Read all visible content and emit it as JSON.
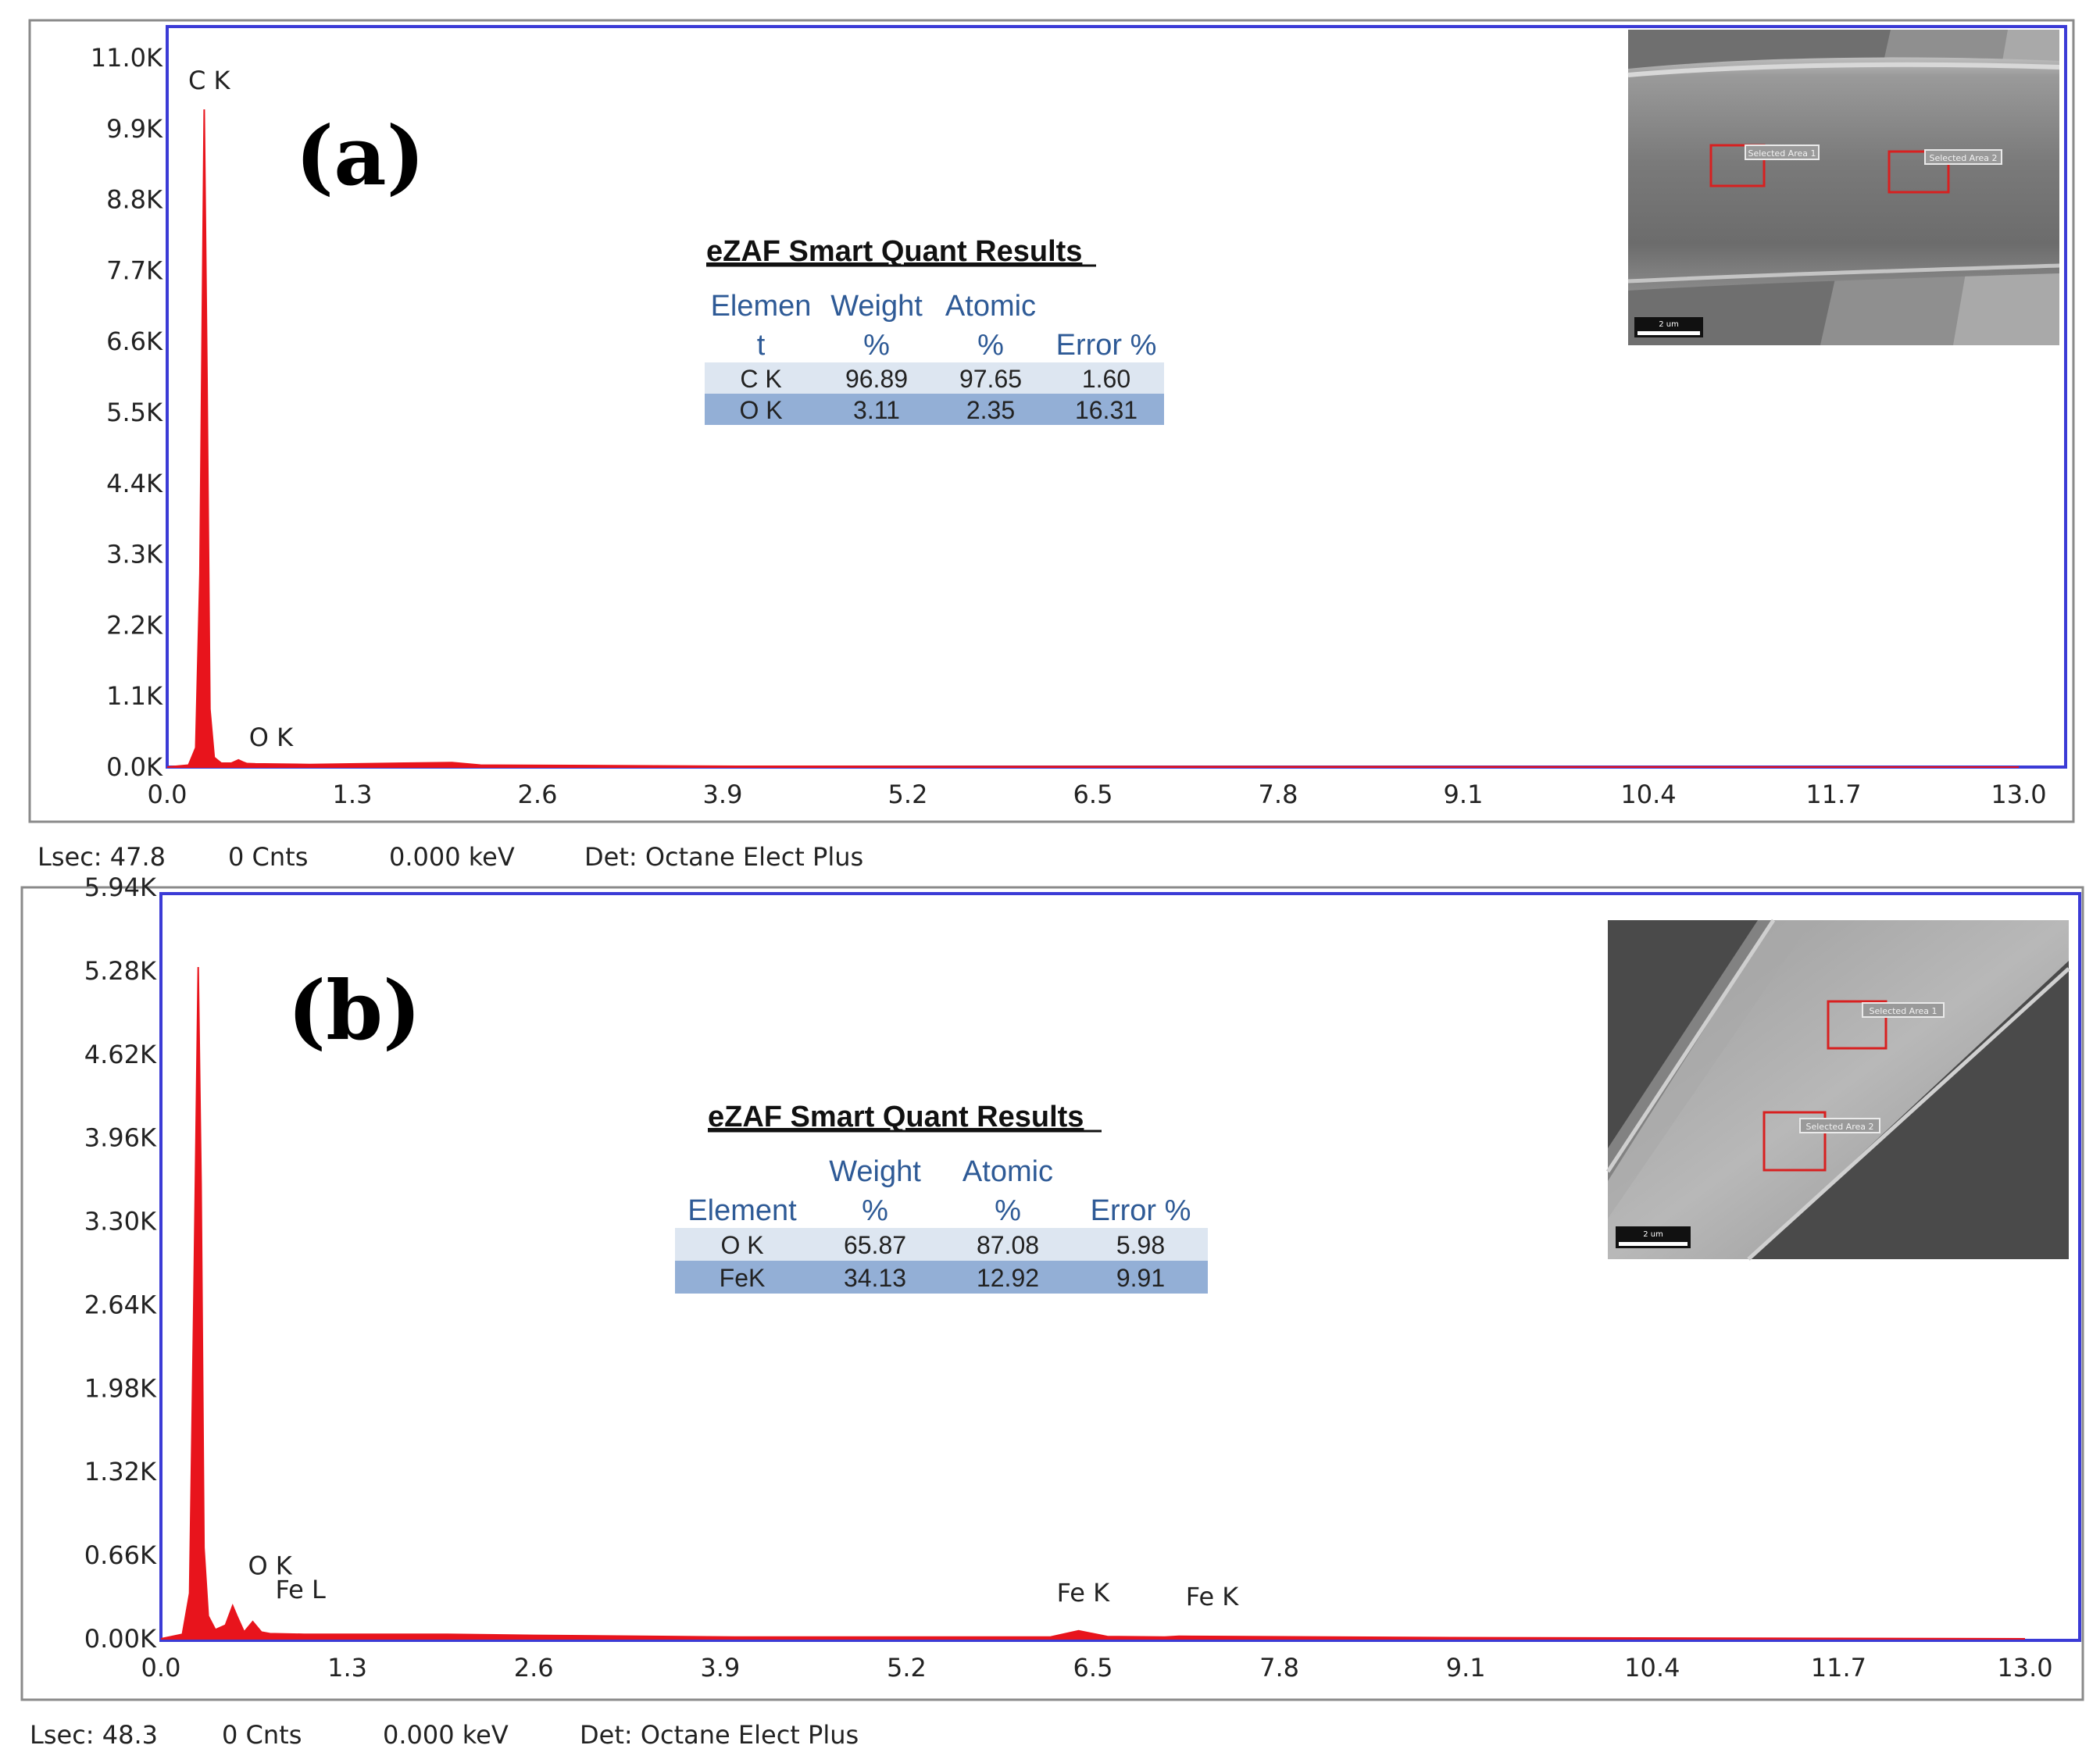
{
  "chart_data": [
    {
      "type": "line",
      "panel_label": "(a)",
      "x_ticks": [
        "0.0",
        "1.3",
        "2.6",
        "3.9",
        "5.2",
        "6.5",
        "7.8",
        "9.1",
        "10.4",
        "11.7",
        "13.0"
      ],
      "y_ticks": [
        "0.0K",
        "1.1K",
        "2.2K",
        "3.3K",
        "4.4K",
        "5.5K",
        "6.6K",
        "7.7K",
        "8.8K",
        "9.9K",
        "11.0K"
      ],
      "xlim": [
        0,
        13.0
      ],
      "ylim": [
        0,
        11000
      ],
      "series": [
        {
          "color": "#e8141c",
          "x": [
            0.0,
            0.15,
            0.2,
            0.23,
            0.26,
            0.28,
            0.3,
            0.33,
            0.38,
            0.45,
            0.5,
            0.53,
            0.56,
            0.62,
            1.0,
            2.0,
            2.2,
            4.0,
            6.5,
            9.0,
            13.0
          ],
          "y": [
            0,
            30,
            300,
            3000,
            10200,
            6000,
            900,
            150,
            60,
            60,
            110,
            80,
            55,
            50,
            40,
            70,
            30,
            12,
            8,
            5,
            0
          ]
        }
      ],
      "peaks": [
        {
          "label": "C  K",
          "x": 0.28,
          "y": 10200
        },
        {
          "label": "O  K",
          "x": 0.52,
          "y": 110
        }
      ],
      "quant_table": {
        "title": "eZAF Smart Quant Results",
        "headers": [
          [
            "Elemen",
            "t"
          ],
          [
            "Weight",
            "%"
          ],
          [
            "Atomic",
            "%"
          ],
          [
            "",
            "Error %"
          ]
        ],
        "rows": [
          [
            "C K",
            "96.89",
            "97.65",
            "1.60"
          ],
          [
            "O K",
            "3.11",
            "2.35",
            "16.31"
          ]
        ]
      },
      "status": {
        "lsec": "Lsec: 47.8",
        "cnts": "0 Cnts",
        "kev": "0.000 keV",
        "det": "Det: Octane Elect Plus"
      },
      "inset": {
        "area_labels": [
          "Selected Area 1",
          "Selected Area 2"
        ],
        "scale": "2 um"
      }
    },
    {
      "type": "line",
      "panel_label": "(b)",
      "x_ticks": [
        "0.0",
        "1.3",
        "2.6",
        "3.9",
        "5.2",
        "6.5",
        "7.8",
        "9.1",
        "10.4",
        "11.7",
        "13.0"
      ],
      "y_ticks": [
        "0.00K",
        "0.66K",
        "1.32K",
        "1.98K",
        "2.64K",
        "3.30K",
        "3.96K",
        "4.62K",
        "5.28K",
        "5.94K"
      ],
      "xlim": [
        0,
        13.0
      ],
      "ylim": [
        0,
        6600
      ],
      "series": [
        {
          "color": "#e8141c",
          "x": [
            0.0,
            0.15,
            0.2,
            0.23,
            0.26,
            0.28,
            0.3,
            0.33,
            0.38,
            0.45,
            0.5,
            0.53,
            0.58,
            0.64,
            0.7,
            0.76,
            1.0,
            2.0,
            2.6,
            4.0,
            6.2,
            6.4,
            6.6,
            7.0,
            7.1,
            9.0,
            13.0
          ],
          "y": [
            0,
            40,
            400,
            3000,
            5900,
            4000,
            800,
            200,
            80,
            120,
            290,
            200,
            60,
            150,
            60,
            45,
            40,
            40,
            30,
            15,
            15,
            70,
            20,
            15,
            22,
            10,
            0
          ]
        }
      ],
      "peaks": [
        {
          "label": "O  K",
          "x": 0.52,
          "y": 290
        },
        {
          "label": "Fe L",
          "x": 0.7,
          "y": 150
        },
        {
          "label": "Fe K",
          "x": 6.4,
          "y": 70
        },
        {
          "label": "Fe K",
          "x": 7.06,
          "y": 22
        }
      ],
      "quant_table": {
        "title": "eZAF Smart Quant Results",
        "headers": [
          [
            "",
            "Element"
          ],
          [
            "Weight",
            "%"
          ],
          [
            "Atomic",
            "%"
          ],
          [
            "",
            "Error %"
          ]
        ],
        "rows": [
          [
            "O K",
            "65.87",
            "87.08",
            "5.98"
          ],
          [
            "FeK",
            "34.13",
            "12.92",
            "9.91"
          ]
        ]
      },
      "status": {
        "lsec": "Lsec: 48.3",
        "cnts": "0 Cnts",
        "kev": "0.000 keV",
        "det": "Det: Octane Elect Plus"
      },
      "inset": {
        "area_labels": [
          "Selected Area 1",
          "Selected Area 2"
        ],
        "scale": "2 um"
      }
    }
  ],
  "colors": {
    "spectrum": "#e8141c",
    "plot_border": "#3b3bd6",
    "table_header_text": "#2e5a96",
    "table_row_light": "#dde6f1",
    "table_row_dark": "#93afd6"
  }
}
